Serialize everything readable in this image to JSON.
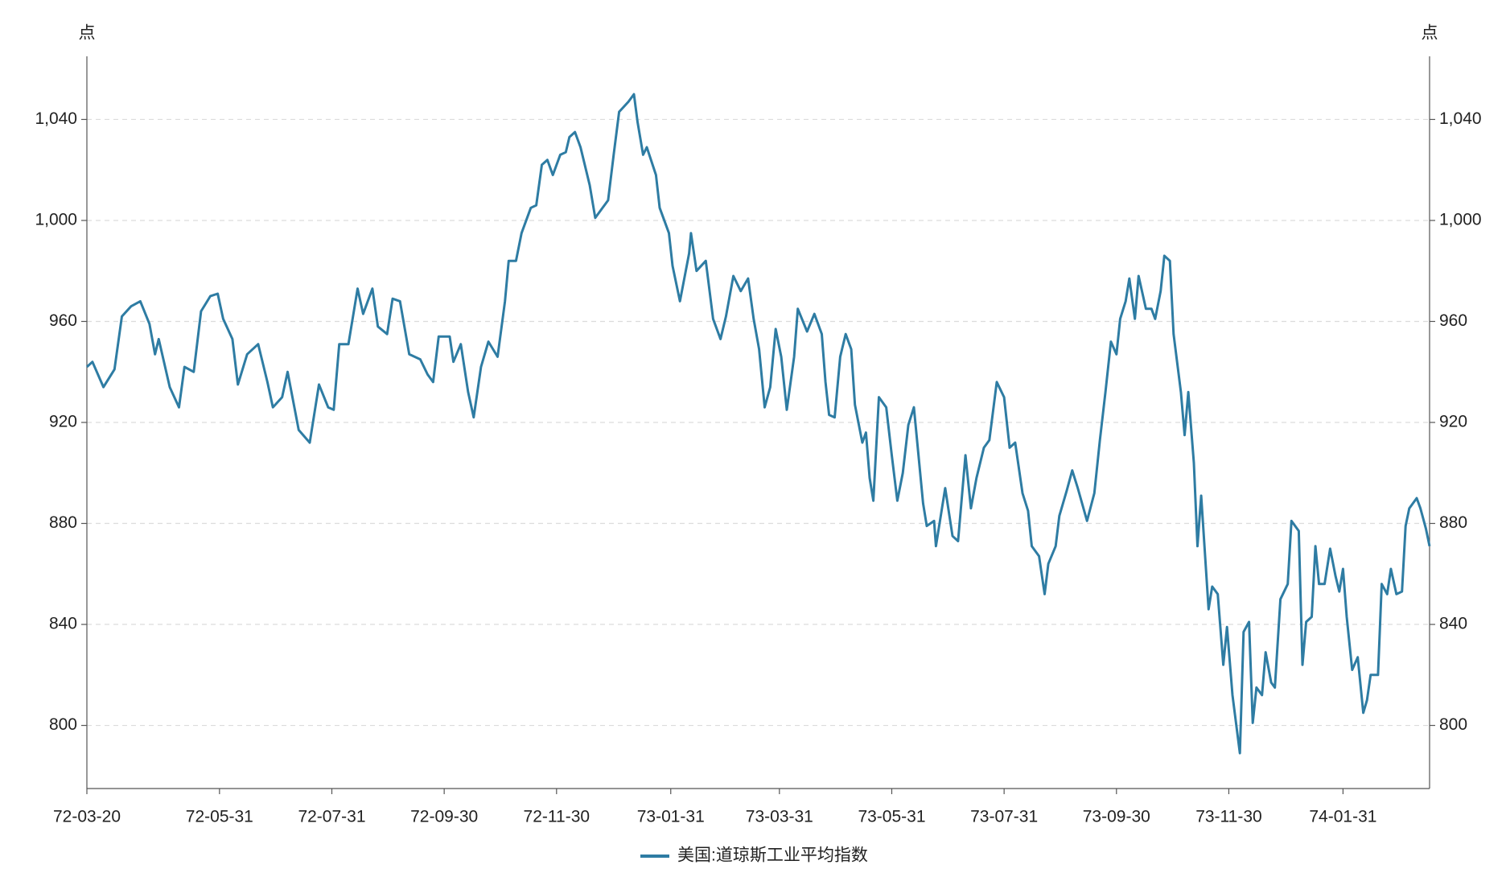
{
  "chart_data": {
    "type": "line",
    "ylabel": "点",
    "y2label": "点",
    "xlim": [
      "72-03-20",
      "74-03-19"
    ],
    "xticks": [
      "72-03-20",
      "72-05-31",
      "72-07-31",
      "72-09-30",
      "72-11-30",
      "73-01-31",
      "73-03-31",
      "73-05-31",
      "73-07-31",
      "73-09-30",
      "73-11-30",
      "74-01-31"
    ],
    "ylim": [
      775,
      1065
    ],
    "yticks": [
      800,
      840,
      880,
      920,
      {
        "value": 960,
        "label": "960"
      },
      {
        "value": 1000,
        "label": "1,000"
      },
      {
        "value": 1040,
        "label": "1,040"
      }
    ],
    "y2lim": [
      775,
      1065
    ],
    "y2ticks": [
      800,
      840,
      880,
      920,
      {
        "value": 960,
        "label": "960"
      },
      {
        "value": 1000,
        "label": "1,000"
      },
      {
        "value": 1040,
        "label": "1,040"
      }
    ],
    "grid": true,
    "x": [
      "72-03-20",
      "72-03-23",
      "72-03-29",
      "72-04-04",
      "72-04-08",
      "72-04-13",
      "72-04-18",
      "72-04-23",
      "72-04-26",
      "72-04-28",
      "72-05-04",
      "72-05-09",
      "72-05-12",
      "72-05-17",
      "72-05-21",
      "72-05-26",
      "72-05-30",
      "72-06-02",
      "72-06-07",
      "72-06-10",
      "72-06-15",
      "72-06-21",
      "72-06-26",
      "72-06-29",
      "72-07-04",
      "72-07-07",
      "72-07-13",
      "72-07-19",
      "72-07-24",
      "72-07-29",
      "72-08-01",
      "72-08-04",
      "72-08-09",
      "72-08-14",
      "72-08-17",
      "72-08-22",
      "72-08-25",
      "72-08-30",
      "72-09-02",
      "72-09-06",
      "72-09-11",
      "72-09-17",
      "72-09-21",
      "72-09-24",
      "72-09-27",
      "72-10-03",
      "72-10-05",
      "72-10-09",
      "72-10-13",
      "72-10-16",
      "72-10-20",
      "72-10-24",
      "72-10-29",
      "72-11-02",
      "72-11-04",
      "72-11-08",
      "72-11-11",
      "72-11-16",
      "72-11-19",
      "72-11-22",
      "72-11-25",
      "72-11-28",
      "72-12-02",
      "72-12-05",
      "72-12-07",
      "72-12-10",
      "72-12-13",
      "72-12-18",
      "72-12-21",
      "72-12-25",
      "72-12-28",
      "72-12-31",
      "73-01-03",
      "73-01-08",
      "73-01-11",
      "73-01-13",
      "73-01-16",
      "73-01-18",
      "73-01-23",
      "73-01-25",
      "73-01-30",
      "73-02-01",
      "73-02-05",
      "73-02-10",
      "73-02-11",
      "73-02-14",
      "73-02-19",
      "73-02-23",
      "73-02-27",
      "73-03-02",
      "73-03-06",
      "73-03-10",
      "73-03-14",
      "73-03-17",
      "73-03-20",
      "73-03-23",
      "73-03-26",
      "73-03-29",
      "73-04-01",
      "73-04-04",
      "73-04-08",
      "73-04-10",
      "73-04-15",
      "73-04-19",
      "73-04-23",
      "73-04-25",
      "73-04-27",
      "73-04-30",
      "73-05-03",
      "73-05-06",
      "73-05-09",
      "73-05-11",
      "73-05-15",
      "73-05-17",
      "73-05-19",
      "73-05-21",
      "73-05-24",
      "73-05-28",
      "73-05-31",
      "73-06-03",
      "73-06-06",
      "73-06-09",
      "73-06-12",
      "73-06-14",
      "73-06-17",
      "73-06-19",
      "73-06-23",
      "73-06-24",
      "73-06-29",
      "73-07-03",
      "73-07-06",
      "73-07-10",
      "73-07-13",
      "73-07-16",
      "73-07-20",
      "73-07-23",
      "73-07-27",
      "73-07-31",
      "73-08-03",
      "73-08-06",
      "73-08-10",
      "73-08-13",
      "73-08-15",
      "73-08-19",
      "73-08-22",
      "73-08-24",
      "73-08-28",
      "73-08-30",
      "73-09-03",
      "73-09-06",
      "73-09-09",
      "73-09-14",
      "73-09-18",
      "73-09-21",
      "73-09-24",
      "73-09-27",
      "73-09-30",
      "73-10-02",
      "73-10-05",
      "73-10-07",
      "73-10-10",
      "73-10-12",
      "73-10-16",
      "73-10-19",
      "73-10-21",
      "73-10-24",
      "73-10-26",
      "73-10-29",
      "73-10-31",
      "73-11-04",
      "73-11-06",
      "73-11-08",
      "73-11-11",
      "73-11-13",
      "73-11-15",
      "73-11-19",
      "73-11-21",
      "73-11-24",
      "73-11-27",
      "73-11-29",
      "73-12-02",
      "73-12-06",
      "73-12-08",
      "73-12-11",
      "73-12-13",
      "73-12-15",
      "73-12-18",
      "73-12-20",
      "73-12-23",
      "73-12-25",
      "73-12-28",
      "74-01-01",
      "74-01-03",
      "74-01-07",
      "74-01-09",
      "74-01-11",
      "74-01-14",
      "74-01-16",
      "74-01-18",
      "74-01-21",
      "74-01-24",
      "74-01-27",
      "74-01-29",
      "74-01-31",
      "74-02-02",
      "74-02-05",
      "74-02-08",
      "74-02-11",
      "74-02-13",
      "74-02-15",
      "74-02-19",
      "74-02-21",
      "74-02-24",
      "74-02-26",
      "74-03-01",
      "74-03-04",
      "74-03-06",
      "74-03-08",
      "74-03-12",
      "74-03-14",
      "74-03-17",
      "74-03-19"
    ],
    "series": [
      {
        "name": "美国:道琼斯工业平均指数",
        "color": "#2e7ca3",
        "values": [
          942,
          944,
          934,
          941,
          962,
          966,
          968,
          959,
          947,
          953,
          934,
          926,
          942,
          940,
          964,
          970,
          971,
          961,
          953,
          935,
          947,
          951,
          936,
          926,
          930,
          940,
          917,
          912,
          935,
          926,
          925,
          951,
          951,
          973,
          963,
          973,
          958,
          955,
          969,
          968,
          947,
          945,
          939,
          936,
          954,
          954,
          944,
          951,
          932,
          922,
          942,
          952,
          946,
          968,
          984,
          984,
          995,
          1005,
          1006,
          1022,
          1024,
          1018,
          1026,
          1027,
          1033,
          1035,
          1029,
          1014,
          1001,
          1005,
          1008,
          1026,
          1043,
          1047,
          1050,
          1039,
          1026,
          1029,
          1018,
          1005,
          995,
          982,
          968,
          987,
          995,
          980,
          984,
          961,
          953,
          962,
          978,
          972,
          977,
          961,
          949,
          926,
          934,
          957,
          946,
          925,
          946,
          965,
          956,
          963,
          955,
          936,
          923,
          922,
          946,
          955,
          949,
          927,
          912,
          916,
          898,
          889,
          930,
          926,
          907,
          889,
          900,
          919,
          926,
          911,
          888,
          879,
          881,
          871,
          894,
          875,
          873,
          907,
          886,
          898,
          910,
          913,
          936,
          930,
          910,
          912,
          892,
          885,
          871,
          867,
          852,
          864,
          871,
          883,
          893,
          901,
          894,
          881,
          892,
          913,
          932,
          952,
          947,
          961,
          968,
          977,
          961,
          978,
          965,
          965,
          961,
          972,
          986,
          984,
          955,
          932,
          915,
          932,
          904,
          871,
          891,
          846,
          855,
          852,
          824,
          839,
          812,
          789,
          837,
          841,
          801,
          815,
          812,
          829,
          817,
          815,
          850,
          856,
          881,
          877,
          824,
          841,
          843,
          871,
          856,
          856,
          870,
          859,
          853,
          862,
          843,
          822,
          827,
          805,
          810,
          820,
          820,
          856,
          852,
          862,
          852,
          853,
          879,
          886,
          890,
          886,
          878,
          871
        ]
      }
    ]
  }
}
